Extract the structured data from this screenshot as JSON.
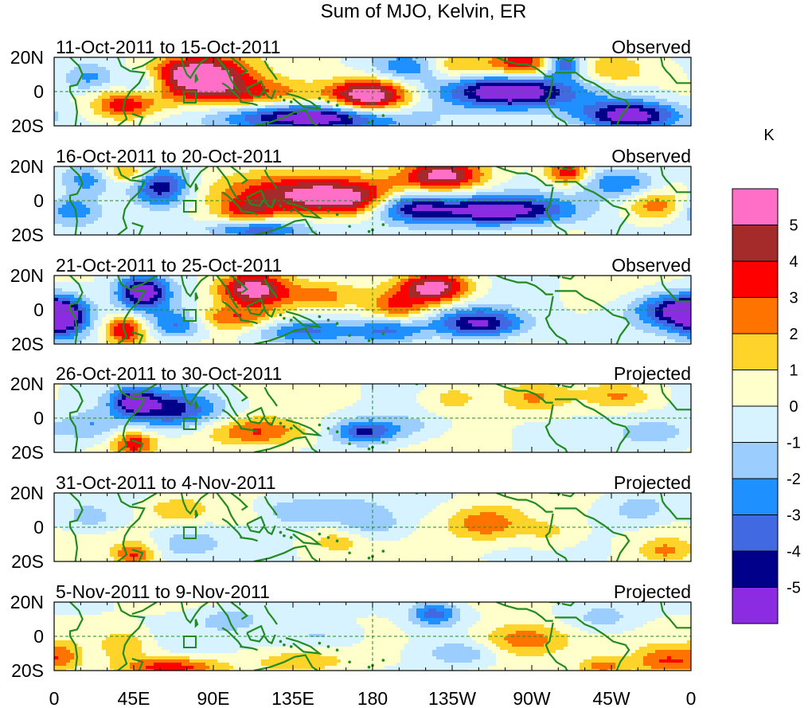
{
  "chart_data": {
    "type": "heatmap",
    "title": "Sum of MJO, Kelvin, ER",
    "units_label": "K",
    "x_ticks": [
      "0",
      "45E",
      "90E",
      "135E",
      "180",
      "135W",
      "90W",
      "45W",
      "0"
    ],
    "y_ticks": [
      "20N",
      "0",
      "20S"
    ],
    "x_range_deg_east": [
      0,
      360
    ],
    "y_range_deg": [
      -20,
      20
    ],
    "colorbar": {
      "labels": [
        "5",
        "4",
        "3",
        "2",
        "1",
        "0",
        "-1",
        "-2",
        "-3",
        "-4",
        "-5"
      ],
      "colors": [
        "#ff6ec7",
        "#a52a2a",
        "#ff0000",
        "#ff7300",
        "#ffd42a",
        "#ffffcc",
        "#d6f3ff",
        "#9ccdff",
        "#1e90ff",
        "#4169e1",
        "#00008b",
        "#8b2be2"
      ]
    },
    "panels": [
      {
        "period": "11-Oct-2011 to 15-Oct-2011",
        "status": "Observed",
        "anomalies": [
          {
            "lon": 82,
            "lat": 10,
            "amp": 6.5,
            "sx": 20,
            "sy": 8
          },
          {
            "lon": 113,
            "lat": -2,
            "amp": 3.5,
            "sx": 30,
            "sy": 7
          },
          {
            "lon": 178,
            "lat": -3,
            "amp": 6.5,
            "sx": 15,
            "sy": 7
          },
          {
            "lon": 265,
            "lat": 16,
            "amp": 4.0,
            "sx": 16,
            "sy": 6
          },
          {
            "lon": 225,
            "lat": 15,
            "amp": 2.5,
            "sx": 12,
            "sy": 6
          },
          {
            "lon": 40,
            "lat": -8,
            "amp": 3.5,
            "sx": 12,
            "sy": 6
          },
          {
            "lon": 315,
            "lat": 12,
            "amp": 2.0,
            "sx": 15,
            "sy": 6
          },
          {
            "lon": 145,
            "lat": -15,
            "amp": -6.5,
            "sx": 35,
            "sy": 6
          },
          {
            "lon": 255,
            "lat": 0,
            "amp": -6.5,
            "sx": 28,
            "sy": 7
          },
          {
            "lon": 325,
            "lat": -14,
            "amp": -6.0,
            "sx": 20,
            "sy": 6
          },
          {
            "lon": 288,
            "lat": 16,
            "amp": -5.0,
            "sx": 8,
            "sy": 5
          },
          {
            "lon": 50,
            "lat": 5,
            "amp": -3.0,
            "sx": 10,
            "sy": 6
          },
          {
            "lon": 20,
            "lat": 8,
            "amp": -2.5,
            "sx": 10,
            "sy": 6
          },
          {
            "lon": 200,
            "lat": 14,
            "amp": -3.0,
            "sx": 15,
            "sy": 6
          }
        ]
      },
      {
        "period": "16-Oct-2011 to 20-Oct-2011",
        "status": "Observed",
        "anomalies": [
          {
            "lon": 135,
            "lat": 5,
            "amp": 4.5,
            "sx": 35,
            "sy": 8
          },
          {
            "lon": 165,
            "lat": 0,
            "amp": 3.5,
            "sx": 20,
            "sy": 6
          },
          {
            "lon": 220,
            "lat": 15,
            "amp": 5.5,
            "sx": 16,
            "sy": 6
          },
          {
            "lon": 290,
            "lat": 16,
            "amp": 4.0,
            "sx": 8,
            "sy": 5
          },
          {
            "lon": 110,
            "lat": -6,
            "amp": 3.0,
            "sx": 12,
            "sy": 5
          },
          {
            "lon": 40,
            "lat": 16,
            "amp": 3.0,
            "sx": 10,
            "sy": 5
          },
          {
            "lon": 340,
            "lat": -3,
            "amp": 2.5,
            "sx": 12,
            "sy": 6
          },
          {
            "lon": 250,
            "lat": -6,
            "amp": -6.0,
            "sx": 30,
            "sy": 6
          },
          {
            "lon": 200,
            "lat": -3,
            "amp": -4.5,
            "sx": 15,
            "sy": 6
          },
          {
            "lon": 60,
            "lat": 8,
            "amp": -5.0,
            "sx": 12,
            "sy": 8
          },
          {
            "lon": 20,
            "lat": 12,
            "amp": -3.0,
            "sx": 12,
            "sy": 6
          },
          {
            "lon": 115,
            "lat": -17,
            "amp": -4.0,
            "sx": 20,
            "sy": 4
          },
          {
            "lon": 10,
            "lat": -5,
            "amp": -3.0,
            "sx": 12,
            "sy": 6
          },
          {
            "lon": 320,
            "lat": 10,
            "amp": -3.0,
            "sx": 15,
            "sy": 6
          }
        ]
      },
      {
        "period": "21-Oct-2011 to 25-Oct-2011",
        "status": "Observed",
        "anomalies": [
          {
            "lon": 112,
            "lat": 12,
            "amp": 6.0,
            "sx": 14,
            "sy": 7
          },
          {
            "lon": 215,
            "lat": 13,
            "amp": 6.0,
            "sx": 14,
            "sy": 6
          },
          {
            "lon": 40,
            "lat": -12,
            "amp": 4.0,
            "sx": 8,
            "sy": 6
          },
          {
            "lon": 100,
            "lat": -5,
            "amp": 3.0,
            "sx": 20,
            "sy": 5
          },
          {
            "lon": 195,
            "lat": 2,
            "amp": 3.0,
            "sx": 12,
            "sy": 6
          },
          {
            "lon": 150,
            "lat": 8,
            "amp": 2.0,
            "sx": 14,
            "sy": 5
          },
          {
            "lon": 50,
            "lat": 10,
            "amp": -6.0,
            "sx": 10,
            "sy": 7
          },
          {
            "lon": 5,
            "lat": -5,
            "amp": -5.0,
            "sx": 10,
            "sy": 8
          },
          {
            "lon": 240,
            "lat": -8,
            "amp": -5.5,
            "sx": 18,
            "sy": 6
          },
          {
            "lon": 350,
            "lat": 0,
            "amp": -5.0,
            "sx": 16,
            "sy": 7
          },
          {
            "lon": 70,
            "lat": -8,
            "amp": -4.0,
            "sx": 12,
            "sy": 6
          },
          {
            "lon": 140,
            "lat": -12,
            "amp": -3.0,
            "sx": 20,
            "sy": 5
          },
          {
            "lon": 190,
            "lat": -12,
            "amp": -3.0,
            "sx": 14,
            "sy": 5
          }
        ]
      },
      {
        "period": "26-Oct-2011 to 30-Oct-2011",
        "status": "Projected",
        "anomalies": [
          {
            "lon": 115,
            "lat": -8,
            "amp": 3.5,
            "sx": 20,
            "sy": 6
          },
          {
            "lon": 45,
            "lat": -15,
            "amp": 3.5,
            "sx": 8,
            "sy": 5
          },
          {
            "lon": 270,
            "lat": 12,
            "amp": 2.0,
            "sx": 14,
            "sy": 6
          },
          {
            "lon": 225,
            "lat": 12,
            "amp": 1.8,
            "sx": 12,
            "sy": 6
          },
          {
            "lon": 320,
            "lat": 13,
            "amp": 1.8,
            "sx": 12,
            "sy": 5
          },
          {
            "lon": 65,
            "lat": 5,
            "amp": -4.5,
            "sx": 20,
            "sy": 8
          },
          {
            "lon": 45,
            "lat": 10,
            "amp": -4.0,
            "sx": 8,
            "sy": 5
          },
          {
            "lon": 175,
            "lat": -8,
            "amp": -4.0,
            "sx": 12,
            "sy": 5
          },
          {
            "lon": 20,
            "lat": -5,
            "amp": -2.0,
            "sx": 12,
            "sy": 6
          },
          {
            "lon": 200,
            "lat": -5,
            "amp": -1.5,
            "sx": 15,
            "sy": 6
          },
          {
            "lon": 340,
            "lat": -8,
            "amp": -1.5,
            "sx": 15,
            "sy": 6
          }
        ]
      },
      {
        "period": "31-Oct-2011 to 4-Nov-2011",
        "status": "Projected",
        "anomalies": [
          {
            "lon": 245,
            "lat": 2,
            "amp": 3.0,
            "sx": 15,
            "sy": 7
          },
          {
            "lon": 45,
            "lat": -16,
            "amp": 3.0,
            "sx": 8,
            "sy": 5
          },
          {
            "lon": 70,
            "lat": 10,
            "amp": 2.0,
            "sx": 12,
            "sy": 5
          },
          {
            "lon": 105,
            "lat": 8,
            "amp": 1.5,
            "sx": 12,
            "sy": 5
          },
          {
            "lon": 280,
            "lat": -3,
            "amp": 1.5,
            "sx": 12,
            "sy": 6
          },
          {
            "lon": 345,
            "lat": -14,
            "amp": 2.0,
            "sx": 10,
            "sy": 5
          },
          {
            "lon": 160,
            "lat": -8,
            "amp": 1.5,
            "sx": 12,
            "sy": 5
          },
          {
            "lon": 140,
            "lat": 10,
            "amp": -1.8,
            "sx": 30,
            "sy": 6
          },
          {
            "lon": 180,
            "lat": 0,
            "amp": -1.8,
            "sx": 14,
            "sy": 6
          },
          {
            "lon": 75,
            "lat": -10,
            "amp": -1.5,
            "sx": 12,
            "sy": 6
          },
          {
            "lon": 20,
            "lat": 5,
            "amp": -1.5,
            "sx": 12,
            "sy": 6
          },
          {
            "lon": 330,
            "lat": 10,
            "amp": -1.5,
            "sx": 12,
            "sy": 6
          }
        ]
      },
      {
        "period": "5-Nov-2011 to 9-Nov-2011",
        "status": "Projected",
        "anomalies": [
          {
            "lon": 265,
            "lat": -2,
            "amp": 3.0,
            "sx": 18,
            "sy": 7
          },
          {
            "lon": 345,
            "lat": -15,
            "amp": 3.0,
            "sx": 12,
            "sy": 6
          },
          {
            "lon": 65,
            "lat": -18,
            "amp": 3.5,
            "sx": 20,
            "sy": 4
          },
          {
            "lon": 40,
            "lat": -5,
            "amp": 2.0,
            "sx": 10,
            "sy": 6
          },
          {
            "lon": 5,
            "lat": -12,
            "amp": 2.0,
            "sx": 8,
            "sy": 6
          },
          {
            "lon": 140,
            "lat": -15,
            "amp": 1.8,
            "sx": 20,
            "sy": 5
          },
          {
            "lon": 310,
            "lat": -18,
            "amp": 2.5,
            "sx": 10,
            "sy": 4
          },
          {
            "lon": 215,
            "lat": 13,
            "amp": -3.5,
            "sx": 10,
            "sy": 5
          },
          {
            "lon": 230,
            "lat": -10,
            "amp": -1.8,
            "sx": 14,
            "sy": 5
          },
          {
            "lon": 150,
            "lat": 0,
            "amp": -1.5,
            "sx": 16,
            "sy": 6
          },
          {
            "lon": 100,
            "lat": 10,
            "amp": -1.5,
            "sx": 14,
            "sy": 5
          },
          {
            "lon": 310,
            "lat": 10,
            "amp": -1.5,
            "sx": 14,
            "sy": 6
          }
        ]
      }
    ]
  }
}
